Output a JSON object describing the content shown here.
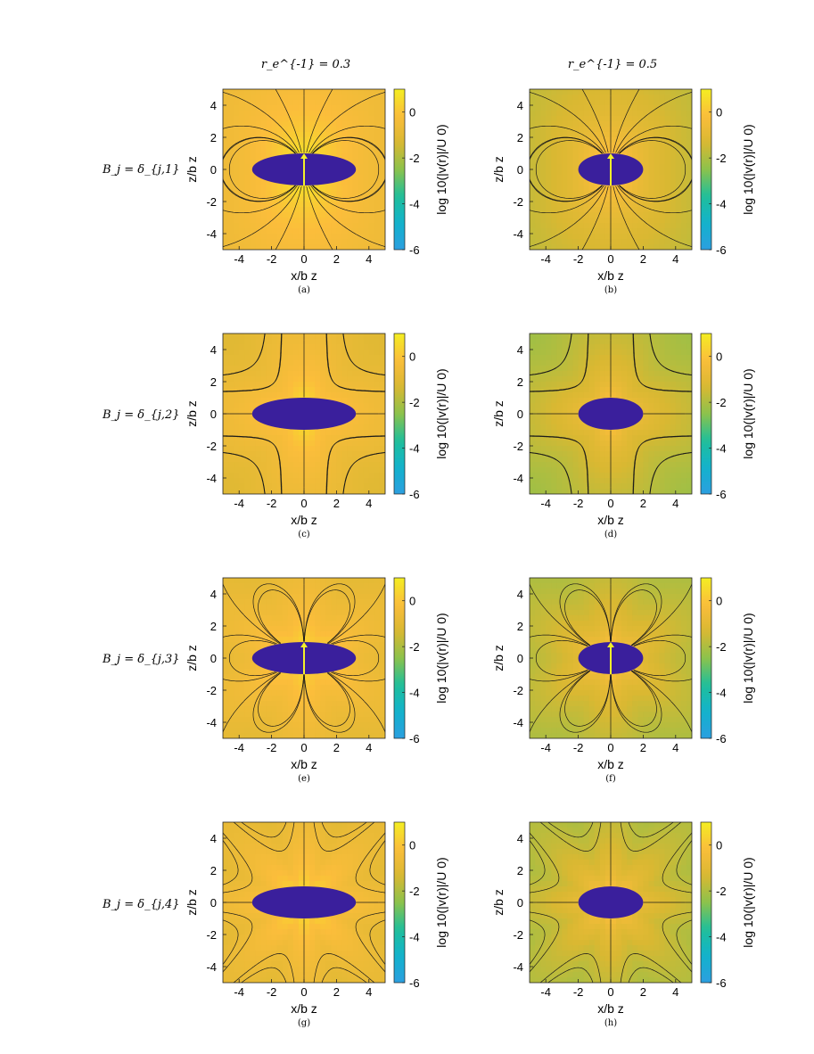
{
  "figure": {
    "column_headers": [
      "r_e^{-1} = 0.3",
      "r_e^{-1} = 0.5"
    ],
    "row_labels": [
      "B_j = δ_{j,1}",
      "B_j = δ_{j,2}",
      "B_j = δ_{j,3}",
      "B_j = δ_{j,4}"
    ]
  },
  "colors": {
    "body": "#3a1f9c",
    "arrow": "#f3f02a",
    "streamline": "#1a1a1a",
    "colormap": [
      "#2c9fe0",
      "#12b2cc",
      "#1fbf9a",
      "#8cc24c",
      "#d9b832",
      "#fbbd3b",
      "#f4ee22"
    ]
  },
  "chart_data": [
    {
      "id": "a",
      "type": "heatmap",
      "caption": "(a)",
      "column": 0,
      "row": 0,
      "mode": 1,
      "inv_re": 0.3,
      "arrow": true,
      "xlabel": "x/b z",
      "ylabel": "z/b z",
      "xlim": [
        -5,
        5
      ],
      "ylim": [
        -5,
        5
      ],
      "xticks": [
        -4,
        -2,
        0,
        2,
        4
      ],
      "yticks": [
        -4,
        -2,
        0,
        2,
        4
      ],
      "colorbar": {
        "label": "log 10(|v(r)|/U 0)",
        "range": [
          -6,
          1
        ],
        "ticks": [
          0,
          -2,
          -4,
          -6
        ]
      },
      "body": {
        "shape": "ellipse",
        "semi_x": 3.2,
        "semi_z": 1
      }
    },
    {
      "id": "b",
      "type": "heatmap",
      "caption": "(b)",
      "column": 1,
      "row": 0,
      "mode": 1,
      "inv_re": 0.5,
      "arrow": true,
      "xlabel": "x/b z",
      "ylabel": "z/b z",
      "xlim": [
        -5,
        5
      ],
      "ylim": [
        -5,
        5
      ],
      "xticks": [
        -4,
        -2,
        0,
        2,
        4
      ],
      "yticks": [
        -4,
        -2,
        0,
        2,
        4
      ],
      "colorbar": {
        "label": "log 10(|v(r)|/U 0)",
        "range": [
          -6,
          1
        ],
        "ticks": [
          0,
          -2,
          -4,
          -6
        ]
      },
      "body": {
        "shape": "ellipse",
        "semi_x": 2,
        "semi_z": 1
      }
    },
    {
      "id": "c",
      "type": "heatmap",
      "caption": "(c)",
      "column": 0,
      "row": 1,
      "mode": 2,
      "inv_re": 0.3,
      "arrow": false,
      "xlabel": "x/b z",
      "ylabel": "z/b z",
      "xlim": [
        -5,
        5
      ],
      "ylim": [
        -5,
        5
      ],
      "xticks": [
        -4,
        -2,
        0,
        2,
        4
      ],
      "yticks": [
        -4,
        -2,
        0,
        2,
        4
      ],
      "colorbar": {
        "label": "log 10(|v(r)|/U 0)",
        "range": [
          -6,
          1
        ],
        "ticks": [
          0,
          -2,
          -4,
          -6
        ]
      },
      "body": {
        "shape": "ellipse",
        "semi_x": 3.2,
        "semi_z": 1
      }
    },
    {
      "id": "d",
      "type": "heatmap",
      "caption": "(d)",
      "column": 1,
      "row": 1,
      "mode": 2,
      "inv_re": 0.5,
      "arrow": false,
      "xlabel": "x/b z",
      "ylabel": "z/b z",
      "xlim": [
        -5,
        5
      ],
      "ylim": [
        -5,
        5
      ],
      "xticks": [
        -4,
        -2,
        0,
        2,
        4
      ],
      "yticks": [
        -4,
        -2,
        0,
        2,
        4
      ],
      "colorbar": {
        "label": "log 10(|v(r)|/U 0)",
        "range": [
          -6,
          1
        ],
        "ticks": [
          0,
          -2,
          -4,
          -6
        ]
      },
      "body": {
        "shape": "ellipse",
        "semi_x": 2,
        "semi_z": 1
      }
    },
    {
      "id": "e",
      "type": "heatmap",
      "caption": "(e)",
      "column": 0,
      "row": 2,
      "mode": 3,
      "inv_re": 0.3,
      "arrow": true,
      "xlabel": "x/b z",
      "ylabel": "z/b z",
      "xlim": [
        -5,
        5
      ],
      "ylim": [
        -5,
        5
      ],
      "xticks": [
        -4,
        -2,
        0,
        2,
        4
      ],
      "yticks": [
        -4,
        -2,
        0,
        2,
        4
      ],
      "colorbar": {
        "label": "log 10(|v(r)|/U 0)",
        "range": [
          -6,
          1
        ],
        "ticks": [
          0,
          -2,
          -4,
          -6
        ]
      },
      "body": {
        "shape": "ellipse",
        "semi_x": 3.2,
        "semi_z": 1
      }
    },
    {
      "id": "f",
      "type": "heatmap",
      "caption": "(f)",
      "column": 1,
      "row": 2,
      "mode": 3,
      "inv_re": 0.5,
      "arrow": true,
      "xlabel": "x/b z",
      "ylabel": "z/b z",
      "xlim": [
        -5,
        5
      ],
      "ylim": [
        -5,
        5
      ],
      "xticks": [
        -4,
        -2,
        0,
        2,
        4
      ],
      "yticks": [
        -4,
        -2,
        0,
        2,
        4
      ],
      "colorbar": {
        "label": "log 10(|v(r)|/U 0)",
        "range": [
          -6,
          1
        ],
        "ticks": [
          0,
          -2,
          -4,
          -6
        ]
      },
      "body": {
        "shape": "ellipse",
        "semi_x": 2,
        "semi_z": 1
      }
    },
    {
      "id": "g",
      "type": "heatmap",
      "caption": "(g)",
      "column": 0,
      "row": 3,
      "mode": 4,
      "inv_re": 0.3,
      "arrow": false,
      "xlabel": "x/b z",
      "ylabel": "z/b z",
      "xlim": [
        -5,
        5
      ],
      "ylim": [
        -5,
        5
      ],
      "xticks": [
        -4,
        -2,
        0,
        2,
        4
      ],
      "yticks": [
        -4,
        -2,
        0,
        2,
        4
      ],
      "colorbar": {
        "label": "log 10(|v(r)|/U 0)",
        "range": [
          -6,
          1
        ],
        "ticks": [
          0,
          -2,
          -4,
          -6
        ]
      },
      "body": {
        "shape": "ellipse",
        "semi_x": 3.2,
        "semi_z": 1
      }
    },
    {
      "id": "h",
      "type": "heatmap",
      "caption": "(h)",
      "column": 1,
      "row": 3,
      "mode": 4,
      "inv_re": 0.5,
      "arrow": false,
      "xlabel": "x/b z",
      "ylabel": "z/b z",
      "xlim": [
        -5,
        5
      ],
      "ylim": [
        -5,
        5
      ],
      "xticks": [
        -4,
        -2,
        0,
        2,
        4
      ],
      "yticks": [
        -4,
        -2,
        0,
        2,
        4
      ],
      "colorbar": {
        "label": "log 10(|v(r)|/U 0)",
        "range": [
          -6,
          1
        ],
        "ticks": [
          0,
          -2,
          -4,
          -6
        ]
      },
      "body": {
        "shape": "ellipse",
        "semi_x": 2,
        "semi_z": 1
      }
    }
  ]
}
